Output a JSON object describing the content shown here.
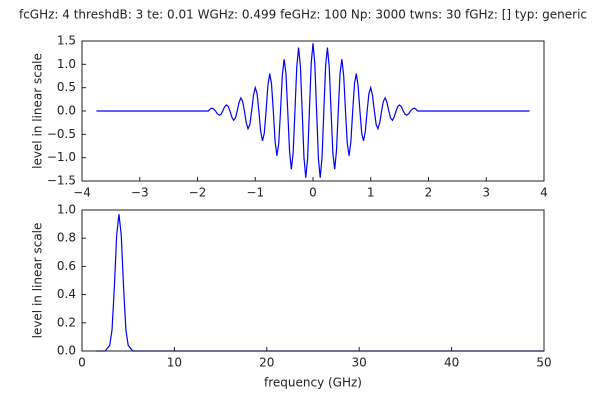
{
  "chart_data": [
    {
      "type": "line",
      "title": "fcGHz: 4 threshdB: 3 te: 0.01 WGHz: 0.499 feGHz: 100 Np: 3000 twns: 30 fGHz: [] typ: generic",
      "ylabel": "level in linear scale",
      "color": "#0000ff",
      "x": [
        -3.75,
        -1.8125,
        -1.78125,
        -1.75,
        -1.71875,
        -1.6875,
        -1.65625,
        -1.625,
        -1.59375,
        -1.5625,
        -1.53125,
        -1.5,
        -1.46875,
        -1.4375,
        -1.40625,
        -1.375,
        -1.34375,
        -1.3125,
        -1.28125,
        -1.25,
        -1.21875,
        -1.1875,
        -1.15625,
        -1.125,
        -1.09375,
        -1.0625,
        -1.03125,
        -1,
        -0.96875,
        -0.9375,
        -0.90625,
        -0.875,
        -0.84375,
        -0.8125,
        -0.78125,
        -0.75,
        -0.71875,
        -0.6875,
        -0.65625,
        -0.625,
        -0.59375,
        -0.5625,
        -0.53125,
        -0.5,
        -0.46875,
        -0.4375,
        -0.40625,
        -0.375,
        -0.34375,
        -0.3125,
        -0.28125,
        -0.25,
        -0.21875,
        -0.1875,
        -0.15625,
        -0.125,
        -0.09375,
        -0.0625,
        -0.03125,
        0,
        0.03125,
        0.0625,
        0.09375,
        0.125,
        0.15625,
        0.1875,
        0.21875,
        0.25,
        0.28125,
        0.3125,
        0.34375,
        0.375,
        0.40625,
        0.4375,
        0.46875,
        0.5,
        0.53125,
        0.5625,
        0.59375,
        0.625,
        0.65625,
        0.6875,
        0.71875,
        0.75,
        0.78125,
        0.8125,
        0.84375,
        0.875,
        0.90625,
        0.9375,
        0.96875,
        1,
        1.03125,
        1.0625,
        1.09375,
        1.125,
        1.15625,
        1.1875,
        1.21875,
        1.25,
        1.28125,
        1.3125,
        1.34375,
        1.375,
        1.40625,
        1.4375,
        1.46875,
        1.5,
        1.53125,
        1.5625,
        1.59375,
        1.625,
        1.65625,
        1.6875,
        1.71875,
        1.75,
        1.78125,
        1.8125,
        3.75
      ],
      "values": [
        0,
        0,
        0.04,
        0.06,
        0.04,
        0,
        -0.06,
        -0.09,
        -0.07,
        0,
        0.09,
        0.13,
        0.1,
        0,
        -0.13,
        -0.2,
        -0.15,
        0,
        0.18,
        0.28,
        0.21,
        0,
        -0.25,
        -0.38,
        -0.29,
        0,
        0.33,
        0.5,
        0.38,
        0,
        -0.43,
        -0.64,
        -0.48,
        0,
        0.54,
        0.8,
        0.59,
        0,
        -0.65,
        -0.96,
        -0.7,
        0,
        0.76,
        1.11,
        0.81,
        0,
        -0.86,
        -1.25,
        -0.9,
        0,
        0.94,
        1.36,
        0.97,
        0,
        -1.0,
        -1.43,
        -1.02,
        0,
        1.02,
        1.45,
        1.02,
        0,
        -1.02,
        -1.43,
        -1.0,
        0,
        0.97,
        1.36,
        0.94,
        0,
        -0.9,
        -1.25,
        -0.86,
        0,
        0.81,
        1.11,
        0.76,
        0,
        -0.7,
        -0.96,
        -0.65,
        0,
        0.59,
        0.8,
        0.54,
        0,
        -0.48,
        -0.64,
        -0.43,
        0,
        0.38,
        0.5,
        0.33,
        0,
        -0.29,
        -0.38,
        -0.25,
        0,
        0.21,
        0.28,
        0.18,
        0,
        -0.15,
        -0.2,
        -0.13,
        0,
        0.1,
        0.13,
        0.09,
        0,
        -0.07,
        -0.09,
        -0.06,
        0,
        0.04,
        0.06,
        0.04,
        0,
        0
      ],
      "xlim": [
        -4,
        4
      ],
      "xticks": [
        {
          "value": -4,
          "label": "−4"
        },
        {
          "value": -3,
          "label": "−3"
        },
        {
          "value": -2,
          "label": "−2"
        },
        {
          "value": -1,
          "label": "−1"
        },
        0,
        1,
        2,
        3,
        4
      ],
      "ylim": [
        -1.5,
        1.5
      ],
      "yticks": [
        {
          "value": -1.5,
          "label": "−1.5"
        },
        {
          "value": -1,
          "label": "−1.0"
        },
        {
          "value": -0.5,
          "label": "−0.5"
        },
        {
          "value": 0,
          "label": "0.0"
        },
        {
          "value": 0.5,
          "label": "0.5"
        },
        {
          "value": 1,
          "label": "1.0"
        },
        {
          "value": 1.5,
          "label": "1.5"
        }
      ]
    },
    {
      "type": "line",
      "ylabel": "level in linear scale",
      "xlabel": "frequency (GHz)",
      "color": "#0000ff",
      "x": [
        1.5,
        2.5,
        3,
        3.25,
        3.5,
        3.75,
        4,
        4.25,
        4.5,
        4.75,
        5,
        5.5,
        50
      ],
      "values": [
        0,
        0,
        0.04,
        0.15,
        0.45,
        0.82,
        0.97,
        0.82,
        0.45,
        0.15,
        0.04,
        0,
        0
      ],
      "xlim": [
        0,
        50
      ],
      "xticks": [
        0,
        10,
        20,
        30,
        40,
        50
      ],
      "ylim": [
        0,
        1
      ],
      "yticks": [
        {
          "value": 0,
          "label": "0.0"
        },
        {
          "value": 0.2,
          "label": "0.2"
        },
        {
          "value": 0.4,
          "label": "0.4"
        },
        {
          "value": 0.6,
          "label": "0.6"
        },
        {
          "value": 0.8,
          "label": "0.8"
        },
        {
          "value": 1,
          "label": "1.0"
        }
      ]
    }
  ]
}
